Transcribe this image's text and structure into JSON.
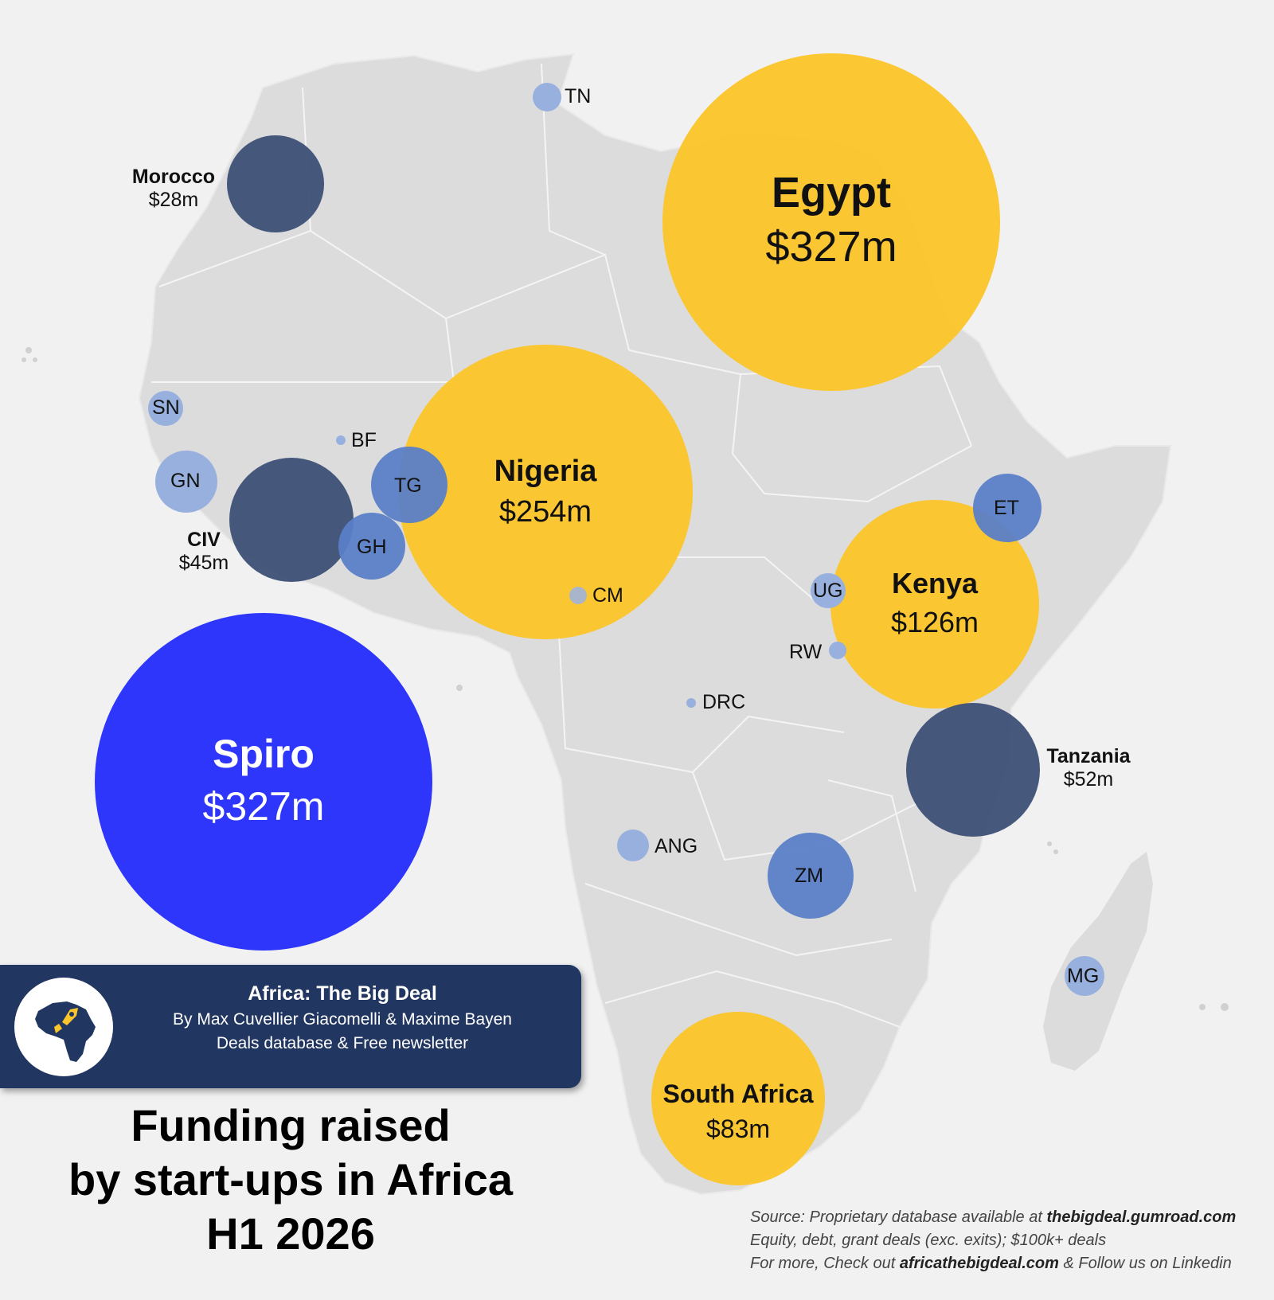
{
  "title": {
    "line1": "Funding raised",
    "line2": "by start-ups in Africa",
    "line3": "H1 2026"
  },
  "banner": {
    "name": "Africa: The Big Deal",
    "authors": "By Max Cuvellier Giacomelli & Maxime Bayen",
    "tagline": "Deals database & Free newsletter"
  },
  "source": {
    "line1_prefix": "Source: Proprietary database available at ",
    "line1_link": "thebigdeal.gumroad.com",
    "line2": "Equity, debt, grant deals (exc. exits); $100k+ deals",
    "line3_prefix": "For more, Check out ",
    "line3_link": "africathebigdeal.com",
    "line3_suffix": " & Follow us on Linkedin"
  },
  "colors": {
    "background": "#f1f1f2",
    "land": "#dcdcdd",
    "tier_top": "#fbc52b",
    "tier_mid": "#3d4f76",
    "tier_low": "#5b80c8",
    "tier_small": "#98b0de",
    "spiro": "#2f36fb",
    "banner": "#213661"
  },
  "bubbles": {
    "egypt": {
      "name": "Egypt",
      "amount": "$327m",
      "value_m": 327
    },
    "nigeria": {
      "name": "Nigeria",
      "amount": "$254m",
      "value_m": 254
    },
    "kenya": {
      "name": "Kenya",
      "amount": "$126m",
      "value_m": 126
    },
    "south_africa": {
      "name": "South Africa",
      "amount": "$83m",
      "value_m": 83
    },
    "spiro": {
      "name": "Spiro",
      "amount": "$327m",
      "value_m": 327
    },
    "morocco": {
      "name": "Morocco",
      "amount": "$28m",
      "value_m": 28
    },
    "civ": {
      "name": "CIV",
      "amount": "$45m",
      "value_m": 45
    },
    "tanzania": {
      "name": "Tanzania",
      "amount": "$52m",
      "value_m": 52
    }
  },
  "codes": {
    "tn": "TN",
    "sn": "SN",
    "bf": "BF",
    "gn": "GN",
    "tg": "TG",
    "gh": "GH",
    "cm": "CM",
    "et": "ET",
    "ug": "UG",
    "rw": "RW",
    "drc": "DRC",
    "ang": "ANG",
    "zm": "ZM",
    "mg": "MG"
  }
}
